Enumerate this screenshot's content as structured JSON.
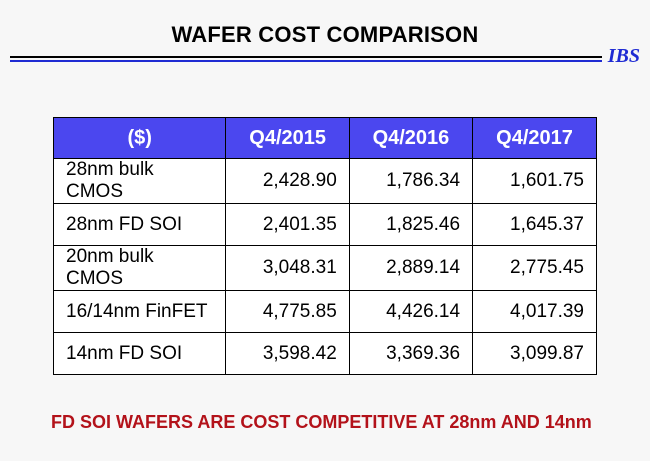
{
  "title": "WAFER COST COMPARISON",
  "logo": "IBS",
  "table": {
    "headers": [
      "($)",
      "Q4/2015",
      "Q4/2016",
      "Q4/2017"
    ],
    "rows": [
      [
        "28nm bulk CMOS",
        "2,428.90",
        "1,786.34",
        "1,601.75"
      ],
      [
        "28nm FD SOI",
        "2,401.35",
        "1,825.46",
        "1,645.37"
      ],
      [
        "20nm bulk CMOS",
        "3,048.31",
        "2,889.14",
        "2,775.45"
      ],
      [
        "16/14nm FinFET",
        "4,775.85",
        "4,426.14",
        "4,017.39"
      ],
      [
        "14nm FD SOI",
        "3,598.42",
        "3,369.36",
        "3,099.87"
      ]
    ]
  },
  "footer": "FD SOI WAFERS ARE COST COMPETITIVE AT 28nm AND 14nm",
  "colors": {
    "header_bg": "#4b47ef",
    "accent_blue": "#1f2bd3",
    "footer_red": "#b3121a"
  }
}
